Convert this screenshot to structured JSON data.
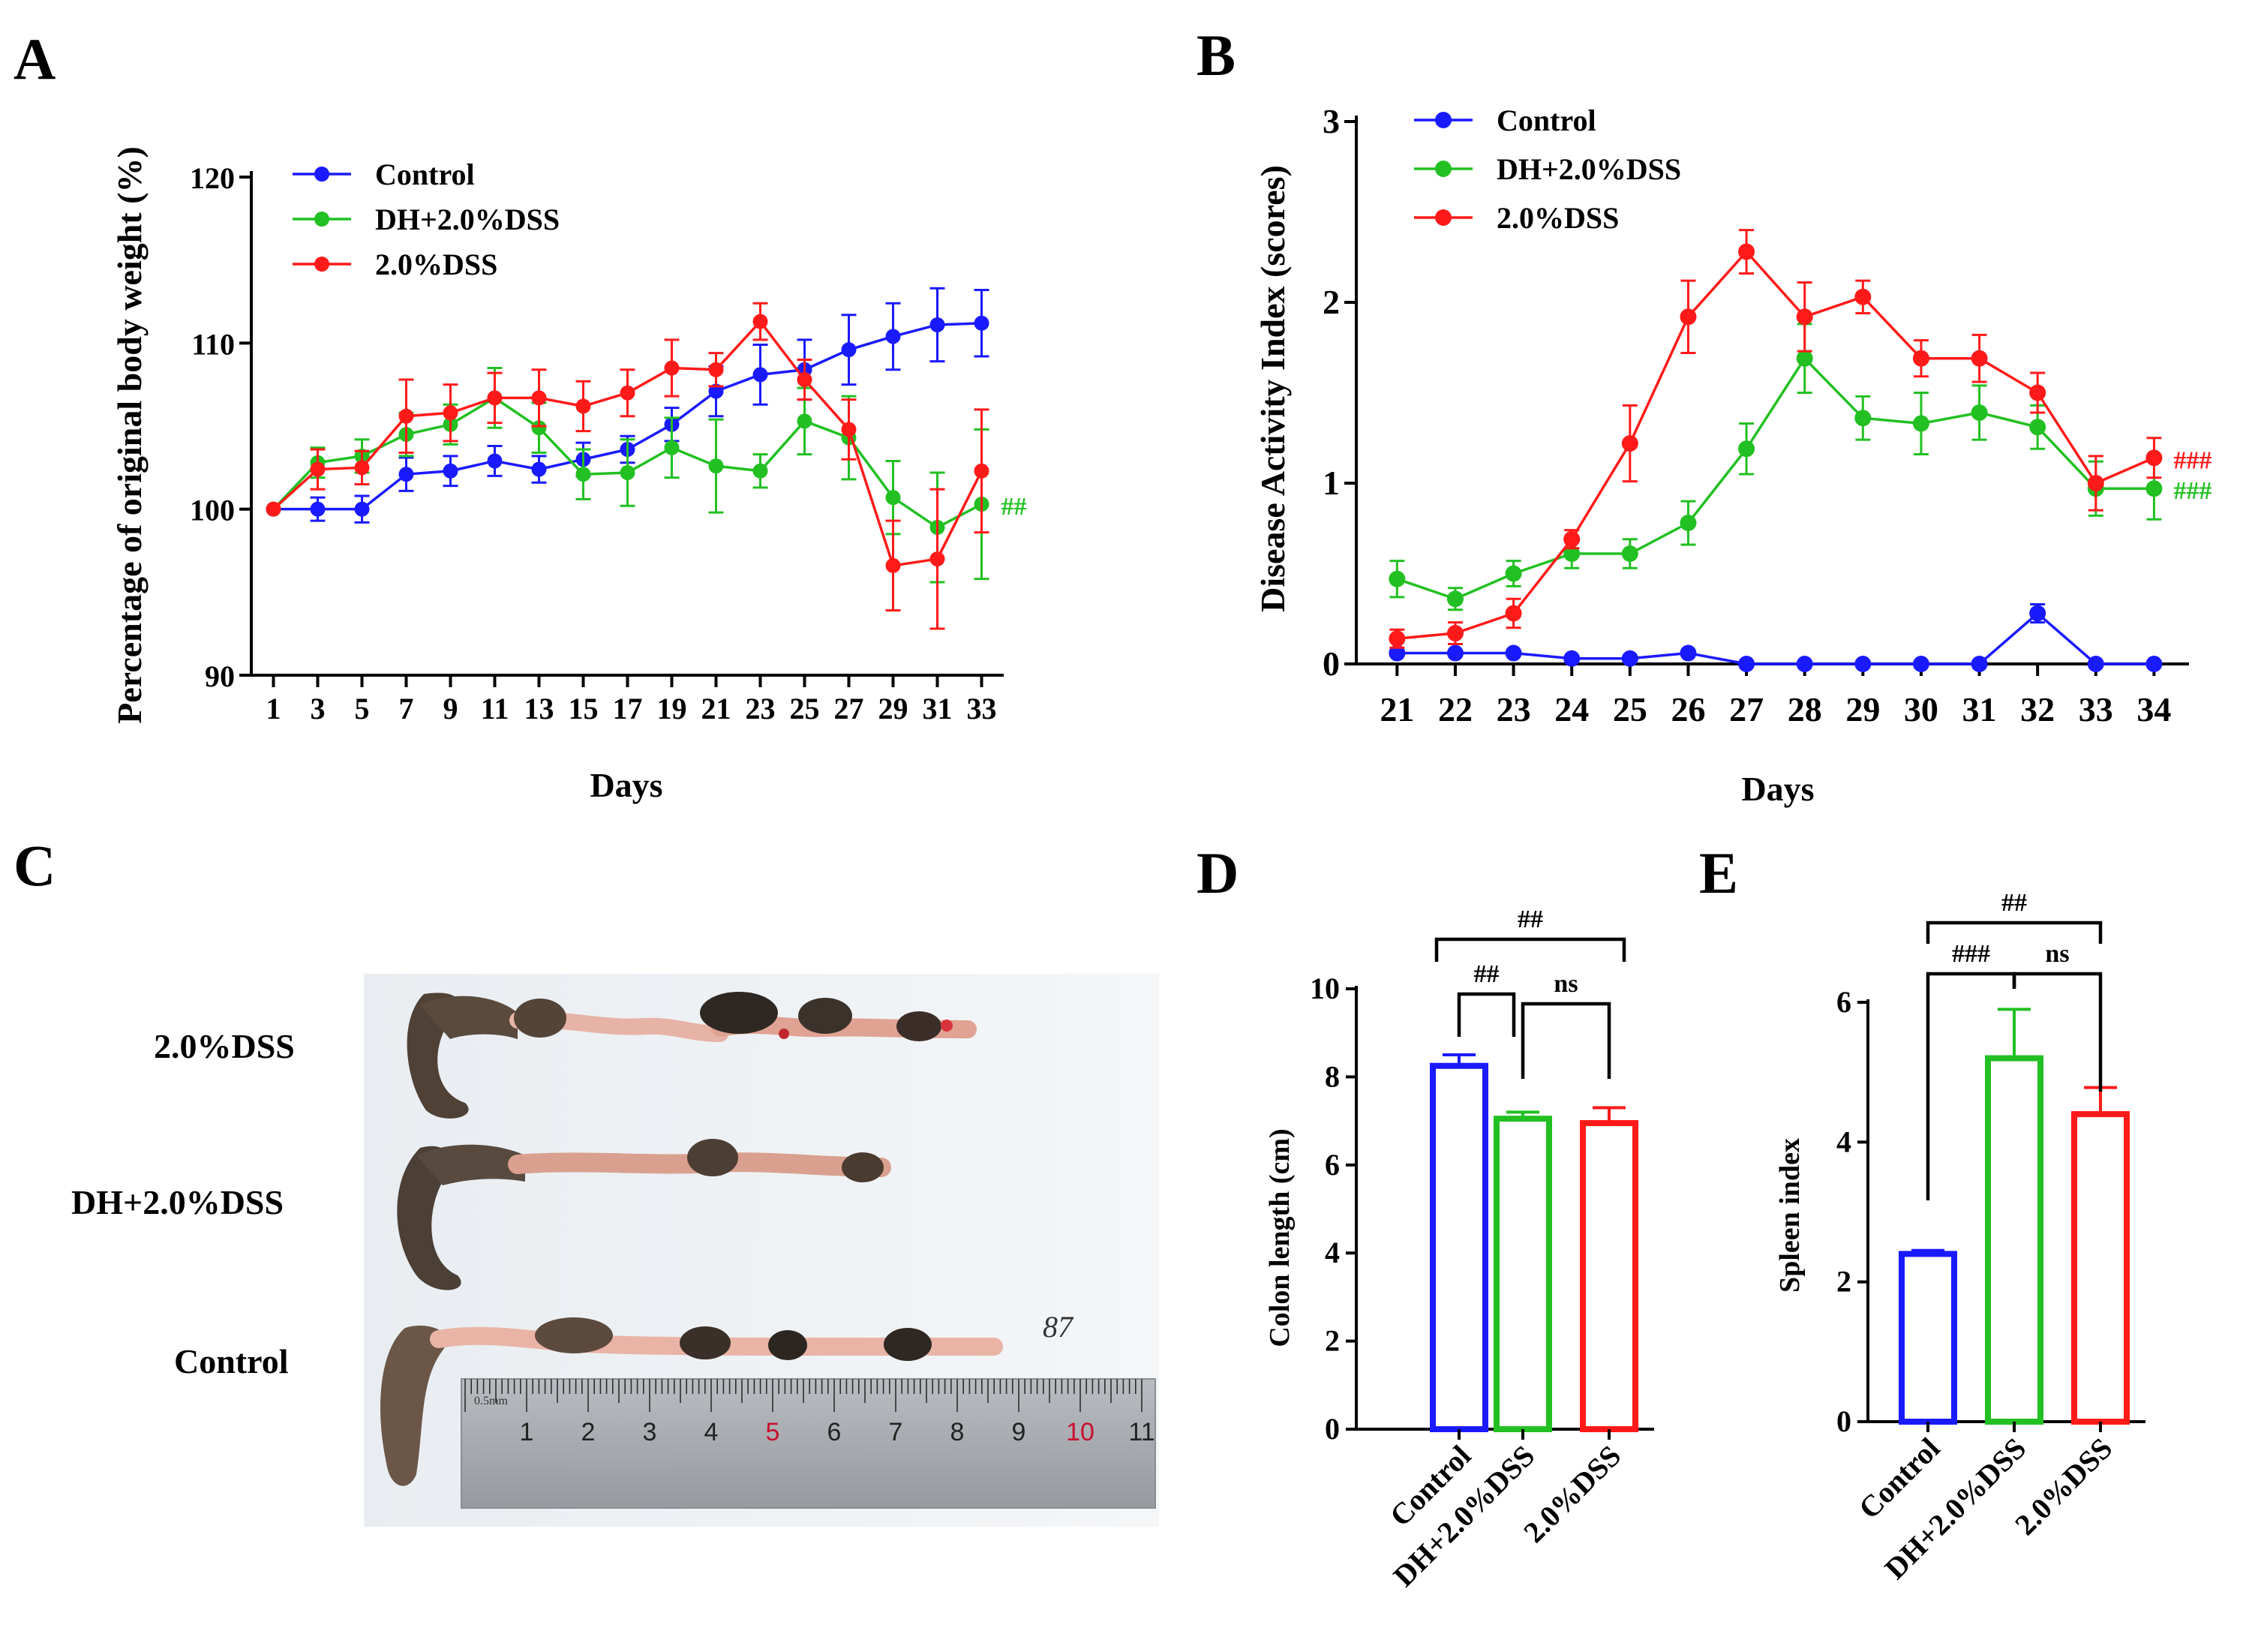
{
  "colors": {
    "control": "#1a1aff",
    "dh": "#22c022",
    "dss": "#ff1a1a",
    "axis": "#000000"
  },
  "panels": {
    "a": "A",
    "b": "B",
    "c": "C",
    "d": "D",
    "e": "E"
  },
  "photo": {
    "row_labels": [
      "2.0%DSS",
      "DH+2.0%DSS",
      "Control"
    ],
    "ruler_numbers": [
      "1",
      "2",
      "3",
      "4",
      "5",
      "6",
      "7",
      "8",
      "9",
      "10",
      "11"
    ],
    "ruler_red": [
      "5",
      "10"
    ],
    "sticker": "87",
    "ruler_unit": "0.5mm"
  },
  "chart_data": [
    {
      "id": "A",
      "type": "line",
      "title": "",
      "xlabel": "Days",
      "ylabel": "Percentage of original body weight (%)",
      "x": [
        1,
        3,
        5,
        7,
        9,
        11,
        13,
        15,
        17,
        19,
        21,
        23,
        25,
        27,
        29,
        31,
        33
      ],
      "xlim": [
        0,
        34
      ],
      "ylim": [
        90,
        120
      ],
      "yticks": [
        90,
        100,
        110,
        120
      ],
      "legend": "top-left",
      "series": [
        {
          "name": "Control",
          "color_key": "control",
          "values": [
            100,
            100,
            100,
            102.1,
            102.3,
            102.9,
            102.4,
            103.0,
            103.6,
            105.1,
            107.1,
            108.1,
            108.4,
            109.6,
            110.4,
            111.1,
            111.2
          ],
          "errors": [
            0,
            0.7,
            0.8,
            1.0,
            0.9,
            0.9,
            0.8,
            1.0,
            0.8,
            1.0,
            1.5,
            1.8,
            1.8,
            2.1,
            2.0,
            2.2,
            2.0
          ]
        },
        {
          "name": "DH+2.0%DSS",
          "color_key": "dh",
          "values": [
            100,
            102.8,
            103.2,
            104.5,
            105.1,
            106.7,
            104.9,
            102.1,
            102.2,
            103.7,
            102.6,
            102.3,
            105.3,
            104.3,
            100.7,
            98.9,
            100.3
          ],
          "errors": [
            0,
            0.9,
            1.0,
            1.3,
            1.2,
            1.8,
            1.5,
            1.5,
            2.0,
            1.8,
            2.8,
            1.0,
            2.0,
            2.5,
            2.2,
            3.3,
            4.5
          ]
        },
        {
          "name": "2.0%DSS",
          "color_key": "dss",
          "values": [
            100,
            102.4,
            102.5,
            105.6,
            105.8,
            106.7,
            106.7,
            106.2,
            107.0,
            108.5,
            108.4,
            111.3,
            107.8,
            104.8,
            96.6,
            97.0,
            102.3
          ],
          "errors": [
            0,
            1.2,
            1.0,
            2.2,
            1.7,
            1.5,
            1.7,
            1.5,
            1.4,
            1.7,
            1.0,
            1.1,
            1.2,
            1.8,
            2.7,
            4.2,
            3.7
          ]
        }
      ],
      "annotations": [
        {
          "text": "##",
          "series": "DH+2.0%DSS",
          "color_key": "dh"
        }
      ]
    },
    {
      "id": "B",
      "type": "line",
      "title": "",
      "xlabel": "Days",
      "ylabel": "Disease Activity Index (scores)",
      "x": [
        21,
        22,
        23,
        24,
        25,
        26,
        27,
        28,
        29,
        30,
        31,
        32,
        33,
        34
      ],
      "xlim": [
        20.3,
        34.6
      ],
      "ylim": [
        0,
        3
      ],
      "yticks": [
        0,
        1,
        2,
        3
      ],
      "legend": "top-left",
      "series": [
        {
          "name": "Control",
          "color_key": "control",
          "values": [
            0.06,
            0.06,
            0.06,
            0.03,
            0.03,
            0.06,
            0.0,
            0.0,
            0.0,
            0.0,
            0.0,
            0.28,
            0.0,
            0.0
          ],
          "errors": [
            0,
            0,
            0,
            0,
            0,
            0,
            0,
            0,
            0,
            0,
            0,
            0.05,
            0,
            0
          ]
        },
        {
          "name": "DH+2.0%DSS",
          "color_key": "dh",
          "values": [
            0.47,
            0.36,
            0.5,
            0.61,
            0.61,
            0.78,
            1.19,
            1.69,
            1.36,
            1.33,
            1.39,
            1.31,
            0.97,
            0.97
          ],
          "errors": [
            0.1,
            0.06,
            0.07,
            0.08,
            0.08,
            0.12,
            0.14,
            0.19,
            0.12,
            0.17,
            0.15,
            0.12,
            0.15,
            0.17
          ]
        },
        {
          "name": "2.0%DSS",
          "color_key": "dss",
          "values": [
            0.14,
            0.17,
            0.28,
            0.69,
            1.22,
            1.92,
            2.28,
            1.92,
            2.03,
            1.69,
            1.69,
            1.5,
            1.0,
            1.14
          ],
          "errors": [
            0.05,
            0.06,
            0.08,
            0.05,
            0.21,
            0.2,
            0.12,
            0.19,
            0.09,
            0.1,
            0.13,
            0.11,
            0.15,
            0.11
          ]
        }
      ],
      "annotations": [
        {
          "text": "###",
          "series": "2.0%DSS",
          "color_key": "dss"
        },
        {
          "text": "###",
          "series": "DH+2.0%DSS",
          "color_key": "dh"
        }
      ]
    },
    {
      "id": "D",
      "type": "bar",
      "title": "",
      "xlabel": "",
      "ylabel": "Colon length (cm)",
      "categories": [
        "Control",
        "DH+2.0%DSS",
        "2.0%DSS"
      ],
      "values": [
        8.25,
        7.05,
        6.95
      ],
      "errors": [
        0.25,
        0.15,
        0.35
      ],
      "ylim": [
        0,
        10
      ],
      "yticks": [
        0,
        2,
        4,
        6,
        8,
        10
      ],
      "color_keys": [
        "control",
        "dh",
        "dss"
      ],
      "significance": [
        {
          "from": 0,
          "to": 2,
          "label": "##"
        },
        {
          "from": 0,
          "to": 1,
          "label": "##"
        },
        {
          "from": 1,
          "to": 2,
          "label": "ns"
        }
      ]
    },
    {
      "id": "E",
      "type": "bar",
      "title": "",
      "xlabel": "",
      "ylabel": "Spleen index",
      "categories": [
        "Control",
        "DH+2.0%DSS",
        "2.0%DSS"
      ],
      "values": [
        2.4,
        5.2,
        4.4
      ],
      "errors": [
        0.05,
        0.7,
        0.38
      ],
      "ylim": [
        0,
        6
      ],
      "yticks": [
        0,
        2,
        4,
        6
      ],
      "color_keys": [
        "control",
        "dh",
        "dss"
      ],
      "significance": [
        {
          "from": 0,
          "to": 2,
          "label": "##"
        },
        {
          "from": 0,
          "to": 1,
          "label": "###"
        },
        {
          "from": 1,
          "to": 2,
          "label": "ns"
        }
      ]
    }
  ]
}
